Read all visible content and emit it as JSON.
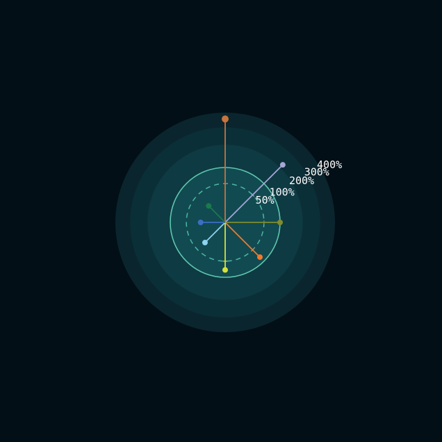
{
  "chart_data": {
    "type": "radial",
    "unit": "%",
    "rings": [
      {
        "value": 50,
        "label": "50%"
      },
      {
        "value": 100,
        "label": "100%"
      },
      {
        "value": 200,
        "label": "200%"
      },
      {
        "value": 300,
        "label": "300%"
      },
      {
        "value": 400,
        "label": "400%"
      }
    ],
    "series": [
      {
        "value": 355,
        "angle_deg": 0,
        "color": "#c8743c"
      },
      {
        "value": 220,
        "angle_deg": 45,
        "color": "#a7a6d6"
      },
      {
        "value": 100,
        "angle_deg": 90,
        "color": "#7f8d2e"
      },
      {
        "value": 80,
        "angle_deg": 135,
        "color": "#f07a2a"
      },
      {
        "value": 75,
        "angle_deg": 180,
        "color": "#d5e23a"
      },
      {
        "value": 27,
        "angle_deg": 225,
        "color": "#8fd3f0"
      },
      {
        "value": 20,
        "angle_deg": 270,
        "color": "#3a6fc4"
      },
      {
        "value": 18,
        "angle_deg": 315,
        "color": "#1a7a4a"
      }
    ],
    "colors": {
      "background": "#020f16",
      "ring_fills": [
        "#0a252e",
        "#0b2f37",
        "#0e3a43",
        "#10454e"
      ],
      "ring_100_stroke": "#5ec7ad",
      "ring_50_stroke": "#4db8a0"
    }
  }
}
